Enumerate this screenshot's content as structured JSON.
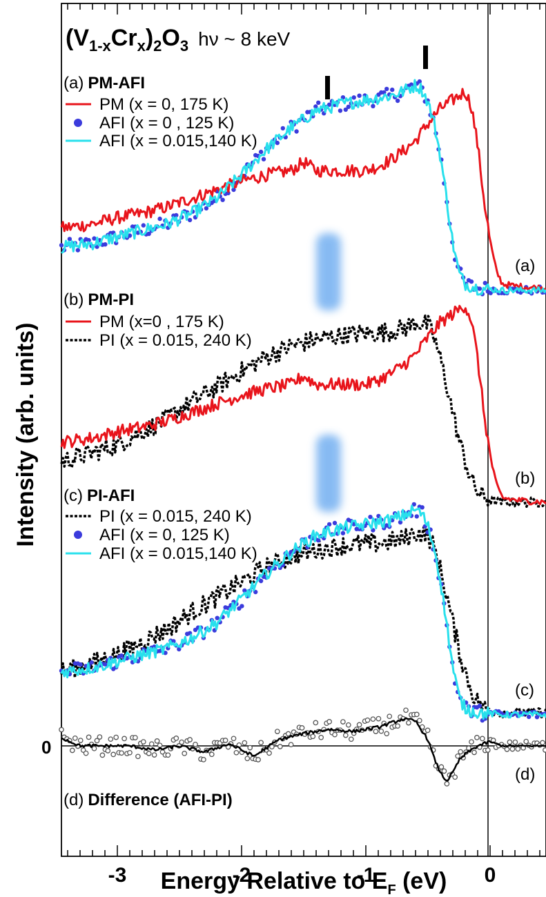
{
  "chart_data": {
    "type": "line",
    "title_parts": {
      "main": "(V",
      "sub1": "1-x",
      "mid": "Cr",
      "sub2": "x",
      "close": ")",
      "sub3": "2",
      "o": "O",
      "sub4": "3",
      "photon": "hν ~ 8 keV"
    },
    "xlabel_parts": {
      "main": "Energy Relative to E",
      "sub": "F",
      "unit": " (eV)"
    },
    "ylabel": "Intensity (arb. units)",
    "xlim": [
      -3.45,
      0.45
    ],
    "x_ticks": [
      -3,
      -2,
      -1,
      0
    ],
    "x_tick_labels": [
      "-3",
      "-2",
      "-1",
      "0"
    ],
    "zero_label": "0",
    "fermi_level_ev": 0,
    "marker_positions_ev": [
      -1.3,
      -0.5
    ],
    "shaded_region_ev": -1.3,
    "colors": {
      "pm": "#e8141b",
      "afi_dot": "#3b3bdc",
      "afi_line": "#28e0ec",
      "pi": "#000000",
      "diff": "#000000",
      "shade": "#6aaaf0"
    },
    "panels": [
      {
        "id": "a",
        "header_prefix": "(a)",
        "header_bold": "PM-AFI",
        "tag": "(a)",
        "legend": [
          {
            "style": "line-red",
            "text": "PM (x = 0, 175 K)"
          },
          {
            "style": "dot-blue",
            "text": "AFI (x = 0 , 125 K)"
          },
          {
            "style": "line-cyan",
            "text": "AFI (x = 0.015,140 K)"
          }
        ],
        "series": [
          {
            "name": "PM (x = 0, 175 K)",
            "kind": "pm"
          },
          {
            "name": "AFI (x = 0 , 125 K)",
            "kind": "afi_dot"
          },
          {
            "name": "AFI (x = 0.015,140 K)",
            "kind": "afi_line"
          }
        ]
      },
      {
        "id": "b",
        "header_prefix": "(b)",
        "header_bold": "PM-PI",
        "tag": "(b)",
        "legend": [
          {
            "style": "line-red",
            "text": "PM (x=0 , 175 K)"
          },
          {
            "style": "dot-black",
            "text": "PI   (x = 0.015, 240 K)"
          }
        ],
        "series": [
          {
            "name": "PM (x=0 , 175 K)",
            "kind": "pm"
          },
          {
            "name": "PI   (x = 0.015, 240 K)",
            "kind": "pi"
          }
        ]
      },
      {
        "id": "c",
        "header_prefix": "(c)",
        "header_bold": "PI-AFI",
        "tag": "(c)",
        "legend": [
          {
            "style": "dot-black",
            "text": "PI    (x = 0.015, 240 K)"
          },
          {
            "style": "dot-blue",
            "text": "AFI  (x = 0, 125 K)"
          },
          {
            "style": "line-cyan",
            "text": "AFI  (x = 0.015,140 K)"
          }
        ],
        "series": [
          {
            "name": "PI    (x = 0.015, 240 K)",
            "kind": "pi"
          },
          {
            "name": "AFI  (x = 0, 125 K)",
            "kind": "afi_dot"
          },
          {
            "name": "AFI  (x = 0.015,140 K)",
            "kind": "afi_line"
          }
        ]
      },
      {
        "id": "d",
        "header_prefix": "(d)",
        "header_bold": "Difference (AFI-PI)",
        "tag": "(d)",
        "series": [
          {
            "name": "Difference (AFI-PI)",
            "kind": "diff_points"
          },
          {
            "name": "Difference (AFI-PI)",
            "kind": "diff_smooth"
          }
        ]
      }
    ],
    "curves": {
      "pm": {
        "x": [
          -3.45,
          -3.2,
          -3.0,
          -2.8,
          -2.6,
          -2.4,
          -2.2,
          -2.0,
          -1.8,
          -1.6,
          -1.5,
          -1.4,
          -1.2,
          -1.0,
          -0.9,
          -0.8,
          -0.7,
          -0.6,
          -0.5,
          -0.4,
          -0.3,
          -0.2,
          -0.15,
          -0.1,
          -0.05,
          0.0,
          0.05,
          0.1,
          0.2,
          0.3,
          0.45
        ],
        "y": [
          0.31,
          0.33,
          0.36,
          0.38,
          0.41,
          0.45,
          0.49,
          0.53,
          0.56,
          0.58,
          0.62,
          0.58,
          0.58,
          0.58,
          0.6,
          0.63,
          0.67,
          0.72,
          0.8,
          0.87,
          0.91,
          0.95,
          0.88,
          0.7,
          0.45,
          0.25,
          0.11,
          0.05,
          0.04,
          0.035,
          0.03
        ]
      },
      "afi": {
        "x": [
          -3.45,
          -3.2,
          -3.0,
          -2.8,
          -2.6,
          -2.4,
          -2.2,
          -2.0,
          -1.8,
          -1.6,
          -1.4,
          -1.2,
          -1.0,
          -0.9,
          -0.8,
          -0.7,
          -0.6,
          -0.55,
          -0.5,
          -0.45,
          -0.4,
          -0.35,
          -0.3,
          -0.25,
          -0.2,
          -0.1,
          0.0,
          0.1,
          0.2,
          0.45
        ],
        "y": [
          0.22,
          0.24,
          0.27,
          0.3,
          0.33,
          0.38,
          0.45,
          0.56,
          0.68,
          0.78,
          0.86,
          0.89,
          0.91,
          0.92,
          0.93,
          0.95,
          0.98,
          0.96,
          0.9,
          0.8,
          0.65,
          0.45,
          0.24,
          0.1,
          0.05,
          0.03,
          0.025,
          0.02,
          0.02,
          0.02
        ]
      },
      "pi": {
        "x": [
          -3.45,
          -3.2,
          -3.0,
          -2.8,
          -2.6,
          -2.4,
          -2.2,
          -2.0,
          -1.8,
          -1.6,
          -1.4,
          -1.2,
          -1.0,
          -0.9,
          -0.8,
          -0.7,
          -0.6,
          -0.5,
          -0.45,
          -0.4,
          -0.35,
          -0.3,
          -0.25,
          -0.2,
          -0.15,
          -0.1,
          -0.05,
          0.0,
          0.1,
          0.2,
          0.45
        ],
        "y": [
          0.22,
          0.26,
          0.3,
          0.36,
          0.42,
          0.5,
          0.57,
          0.64,
          0.71,
          0.76,
          0.79,
          0.81,
          0.82,
          0.82,
          0.83,
          0.84,
          0.87,
          0.86,
          0.8,
          0.7,
          0.58,
          0.45,
          0.32,
          0.22,
          0.13,
          0.08,
          0.05,
          0.04,
          0.03,
          0.03,
          0.03
        ]
      },
      "diff": {
        "x": [
          -3.45,
          -3.3,
          -3.1,
          -2.9,
          -2.7,
          -2.5,
          -2.3,
          -2.1,
          -1.9,
          -1.7,
          -1.5,
          -1.3,
          -1.1,
          -0.9,
          -0.8,
          -0.7,
          -0.6,
          -0.5,
          -0.45,
          -0.4,
          -0.35,
          -0.3,
          -0.25,
          -0.2,
          -0.15,
          -0.1,
          -0.05,
          0.0,
          0.1,
          0.2,
          0.3,
          0.45
        ],
        "y": [
          0.04,
          0.0,
          0.0,
          0.0,
          -0.02,
          0.0,
          -0.03,
          0.01,
          -0.05,
          0.03,
          0.06,
          0.08,
          0.07,
          0.09,
          0.11,
          0.13,
          0.12,
          0.03,
          -0.06,
          -0.13,
          -0.17,
          -0.13,
          -0.07,
          -0.04,
          -0.02,
          0.0,
          0.01,
          0.02,
          0.0,
          0.0,
          0.0,
          0.0
        ]
      }
    },
    "grid": false,
    "legend_placement": "top-left of each panel"
  }
}
